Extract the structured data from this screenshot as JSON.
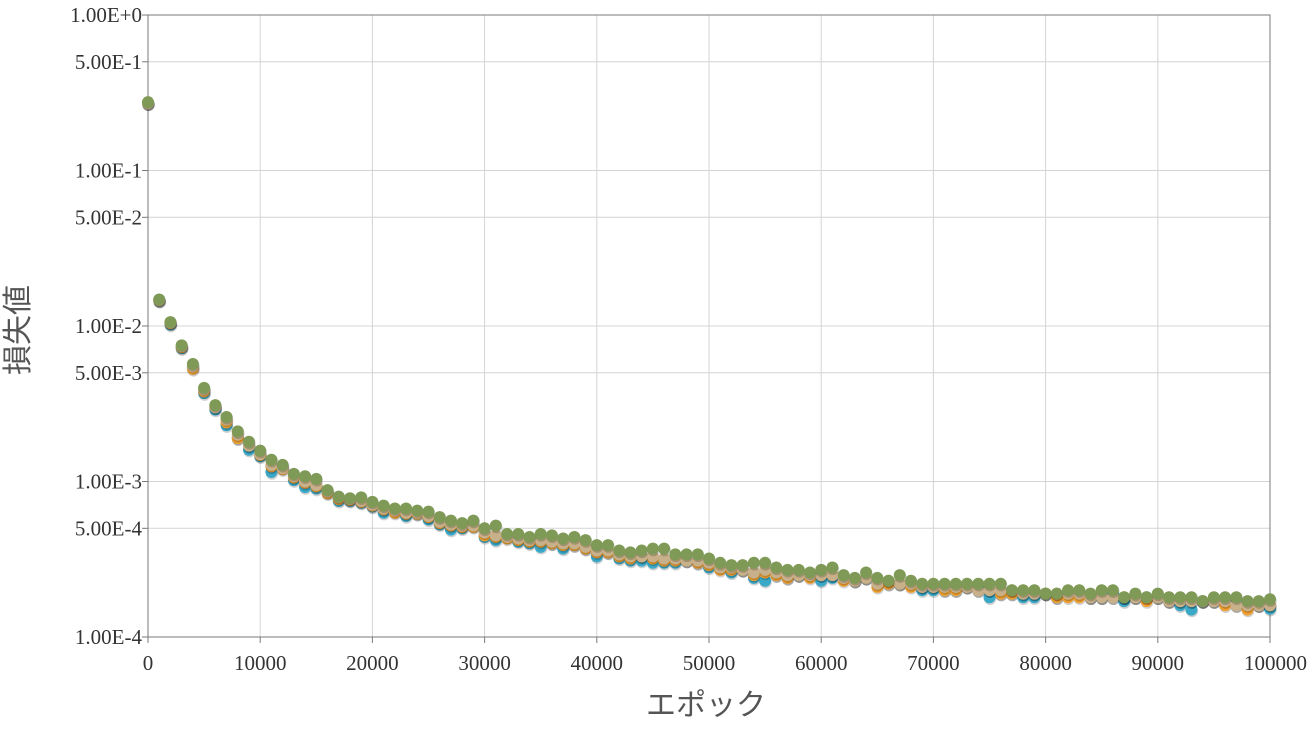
{
  "chart_data": {
    "type": "scatter",
    "title": "",
    "xlabel": "エポック",
    "ylabel": "損失値",
    "xscale": "linear",
    "yscale": "log",
    "xlim": [
      0,
      100000
    ],
    "ylim": [
      0.0001,
      1
    ],
    "grid": true,
    "legend": "none",
    "x_ticks": [
      "0",
      "10000",
      "20000",
      "30000",
      "40000",
      "50000",
      "60000",
      "70000",
      "80000",
      "90000",
      "100000"
    ],
    "y_ticks": [
      {
        "value": 1,
        "label": "1.00E+0"
      },
      {
        "value": 0.5,
        "label": "5.00E-1"
      },
      {
        "value": 0.1,
        "label": "1.00E-1"
      },
      {
        "value": 0.05,
        "label": "5.00E-2"
      },
      {
        "value": 0.01,
        "label": "1.00E-2"
      },
      {
        "value": 0.005,
        "label": "5.00E-3"
      },
      {
        "value": 0.001,
        "label": "1.00E-3"
      },
      {
        "value": 0.0005,
        "label": "5.00E-4"
      },
      {
        "value": 0.0001,
        "label": "1.00E-4"
      }
    ],
    "x": [
      0,
      1000,
      2000,
      3000,
      4000,
      5000,
      6000,
      7000,
      8000,
      9000,
      10000,
      11000,
      12000,
      13000,
      14000,
      15000,
      16000,
      17000,
      18000,
      19000,
      20000,
      21000,
      22000,
      23000,
      24000,
      25000,
      26000,
      27000,
      28000,
      29000,
      30000,
      31000,
      32000,
      33000,
      34000,
      35000,
      36000,
      37000,
      38000,
      39000,
      40000,
      41000,
      42000,
      43000,
      44000,
      45000,
      46000,
      47000,
      48000,
      49000,
      50000,
      51000,
      52000,
      53000,
      54000,
      55000,
      56000,
      57000,
      58000,
      59000,
      60000,
      61000,
      62000,
      63000,
      64000,
      65000,
      66000,
      67000,
      68000,
      69000,
      70000,
      71000,
      72000,
      73000,
      74000,
      75000,
      76000,
      77000,
      78000,
      79000,
      80000,
      81000,
      82000,
      83000,
      84000,
      85000,
      86000,
      87000,
      88000,
      89000,
      90000,
      91000,
      92000,
      93000,
      94000,
      95000,
      96000,
      97000,
      98000,
      99000,
      100000
    ],
    "series": [
      {
        "color": "#3aa8c7",
        "values": [
          0.27,
          0.0145,
          0.0102,
          0.0072,
          0.0054,
          0.0037,
          0.0029,
          0.0023,
          0.0019,
          0.0016,
          0.00145,
          0.00115,
          0.00125,
          0.00102,
          0.00092,
          0.0009,
          0.00085,
          0.00075,
          0.00075,
          0.00073,
          0.00069,
          0.00063,
          0.00064,
          0.0006,
          0.00062,
          0.00057,
          0.00053,
          0.00049,
          0.0005,
          0.00052,
          0.00044,
          0.00042,
          0.00044,
          0.00041,
          0.0004,
          0.00038,
          0.0004,
          0.00037,
          0.00039,
          0.00037,
          0.00033,
          0.00035,
          0.00032,
          0.00031,
          0.00031,
          0.0003,
          0.0003,
          0.0003,
          0.00031,
          0.0003,
          0.00028,
          0.00028,
          0.00026,
          0.00027,
          0.00024,
          0.00023,
          0.00025,
          0.00024,
          0.00025,
          0.00025,
          0.00023,
          0.00024,
          0.00024,
          0.00023,
          0.00024,
          0.00022,
          0.00022,
          0.00022,
          0.00022,
          0.0002,
          0.0002,
          0.0002,
          0.0002,
          0.00021,
          0.00021,
          0.00018,
          0.00019,
          0.00019,
          0.00018,
          0.00018,
          0.00019,
          0.00018,
          0.00019,
          0.00019,
          0.00018,
          0.00018,
          0.00019,
          0.00017,
          0.00018,
          0.00018,
          0.00018,
          0.00017,
          0.00016,
          0.00015,
          0.00017,
          0.00017,
          0.00017,
          0.00017,
          0.00016,
          0.00016,
          0.000152
        ]
      },
      {
        "color": "#f0a030",
        "values": [
          0.27,
          0.0146,
          0.0104,
          0.0073,
          0.0053,
          0.0038,
          0.003,
          0.0024,
          0.0019,
          0.0017,
          0.00148,
          0.00125,
          0.0012,
          0.00106,
          0.00098,
          0.00093,
          0.00084,
          0.00077,
          0.00076,
          0.00074,
          0.0007,
          0.00066,
          0.00063,
          0.00062,
          0.00062,
          0.00059,
          0.00054,
          0.00052,
          0.00051,
          0.00051,
          0.00045,
          0.00044,
          0.00043,
          0.00042,
          0.00041,
          0.00041,
          0.0004,
          0.00039,
          0.00039,
          0.00037,
          0.00035,
          0.00035,
          0.00033,
          0.00032,
          0.00033,
          0.00032,
          0.00031,
          0.00031,
          0.00031,
          0.0003,
          0.00029,
          0.00027,
          0.00027,
          0.00027,
          0.00025,
          0.00026,
          0.00025,
          0.00024,
          0.00025,
          0.00024,
          0.00025,
          0.00025,
          0.00023,
          0.00023,
          0.00024,
          0.00021,
          0.00022,
          0.00022,
          0.00021,
          0.00021,
          0.00021,
          0.0002,
          0.0002,
          0.00021,
          0.0002,
          0.0002,
          0.00019,
          0.00019,
          0.00019,
          0.00019,
          0.00019,
          0.00018,
          0.00018,
          0.00018,
          0.00018,
          0.00018,
          0.00018,
          0.00018,
          0.00018,
          0.00017,
          0.00018,
          0.00017,
          0.00017,
          0.00017,
          0.00017,
          0.00017,
          0.00016,
          0.00016,
          0.00015,
          0.00016,
          0.00016
        ]
      },
      {
        "color": "#c8b18a",
        "values": [
          0.27,
          0.0147,
          0.0105,
          0.0074,
          0.0055,
          0.0039,
          0.003,
          0.0025,
          0.002,
          0.0017,
          0.0015,
          0.00128,
          0.00122,
          0.00108,
          0.001,
          0.00095,
          0.00086,
          0.00079,
          0.00077,
          0.00075,
          0.00071,
          0.00067,
          0.00065,
          0.00063,
          0.00063,
          0.0006,
          0.00055,
          0.00053,
          0.00052,
          0.00052,
          0.00047,
          0.00045,
          0.00044,
          0.00043,
          0.00042,
          0.00042,
          0.00041,
          0.0004,
          0.0004,
          0.00038,
          0.00036,
          0.00036,
          0.00034,
          0.00033,
          0.00033,
          0.00033,
          0.00032,
          0.00032,
          0.00031,
          0.00031,
          0.0003,
          0.00028,
          0.00028,
          0.00027,
          0.00026,
          0.00027,
          0.00026,
          0.00025,
          0.00025,
          0.00025,
          0.00025,
          0.00025,
          0.00024,
          0.00023,
          0.00024,
          0.00022,
          0.00023,
          0.00022,
          0.00022,
          0.00021,
          0.00021,
          0.00021,
          0.00021,
          0.00021,
          0.0002,
          0.0002,
          0.0002,
          0.0002,
          0.00019,
          0.00019,
          0.00019,
          0.00019,
          0.00019,
          0.00019,
          0.00018,
          0.00018,
          0.00018,
          0.00018,
          0.00018,
          0.00018,
          0.00018,
          0.00017,
          0.00017,
          0.00017,
          0.00017,
          0.00017,
          0.00017,
          0.00016,
          0.00016,
          0.00016,
          0.00016
        ]
      },
      {
        "color": "#7e9a56",
        "values": [
          0.275,
          0.0148,
          0.0106,
          0.0075,
          0.0057,
          0.004,
          0.0031,
          0.0026,
          0.0021,
          0.0018,
          0.00158,
          0.00138,
          0.00128,
          0.00112,
          0.00108,
          0.00104,
          0.00088,
          0.0008,
          0.00078,
          0.00079,
          0.00074,
          0.0007,
          0.00067,
          0.00067,
          0.00065,
          0.00064,
          0.00059,
          0.00056,
          0.00054,
          0.00056,
          0.0005,
          0.00052,
          0.00046,
          0.00046,
          0.00044,
          0.00046,
          0.00045,
          0.00043,
          0.00044,
          0.00042,
          0.00039,
          0.00039,
          0.00036,
          0.00035,
          0.00036,
          0.00037,
          0.00037,
          0.00034,
          0.00034,
          0.00034,
          0.00032,
          0.0003,
          0.00029,
          0.00029,
          0.0003,
          0.0003,
          0.00028,
          0.00027,
          0.00027,
          0.00026,
          0.00027,
          0.00028,
          0.00025,
          0.00024,
          0.00026,
          0.00024,
          0.00023,
          0.00025,
          0.00023,
          0.00022,
          0.00022,
          0.00022,
          0.00022,
          0.00022,
          0.00022,
          0.00022,
          0.00022,
          0.0002,
          0.0002,
          0.0002,
          0.00019,
          0.00019,
          0.0002,
          0.0002,
          0.00019,
          0.0002,
          0.0002,
          0.00018,
          0.00019,
          0.00018,
          0.00019,
          0.00018,
          0.00018,
          0.00018,
          0.00017,
          0.00018,
          0.00018,
          0.00018,
          0.00017,
          0.00017,
          0.000175
        ]
      }
    ]
  }
}
